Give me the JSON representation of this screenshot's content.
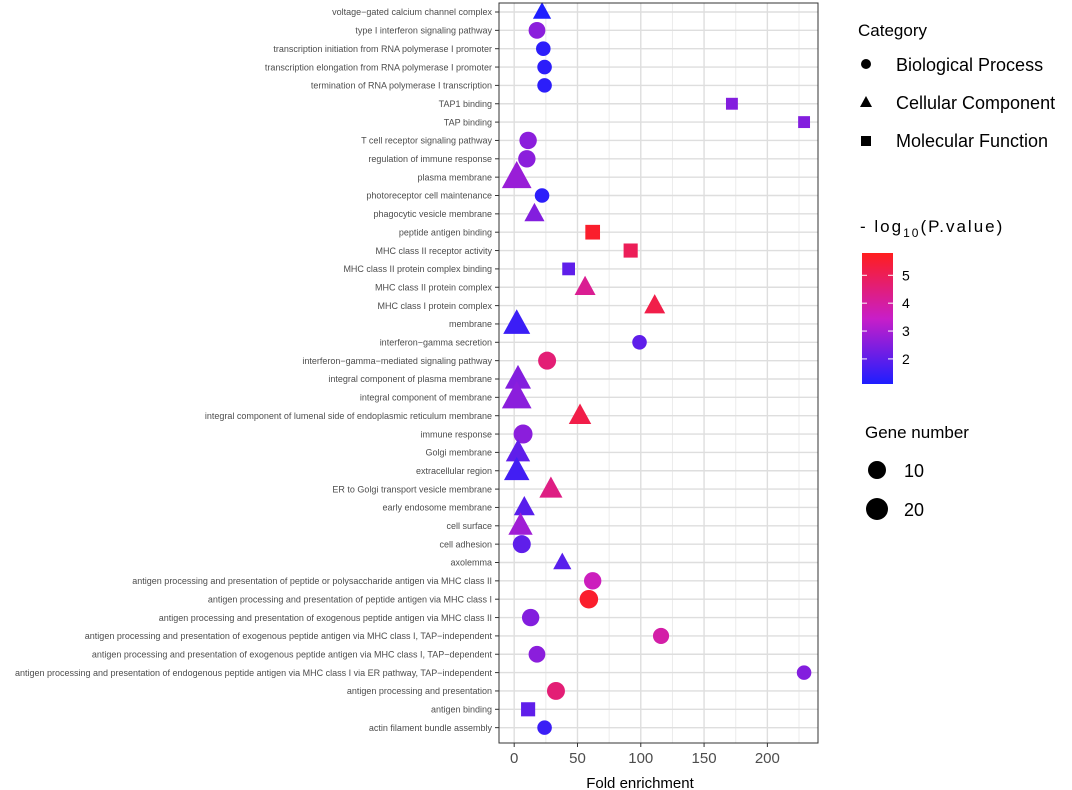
{
  "chart_data": {
    "type": "scatter",
    "xlabel": "Fold enrichment",
    "ylabel": "",
    "xlim": [
      -12,
      240
    ],
    "x_ticks": [
      "0",
      "50",
      "100",
      "150",
      "200"
    ],
    "grid": true,
    "legend_position": "right",
    "category_legend": {
      "title": "Category",
      "items": [
        {
          "label": "Biological Process",
          "shape": "circle"
        },
        {
          "label": "Cellular Component",
          "shape": "triangle"
        },
        {
          "label": "Molecular Function",
          "shape": "square"
        }
      ]
    },
    "color_legend": {
      "title_prefix": "- log",
      "title_sub": "10",
      "title_suffix": "(P.value)",
      "min": 1.1,
      "max": 5.8,
      "ticks": [
        "2",
        "3",
        "4",
        "5"
      ],
      "color_low": "#1e1eff",
      "color_mid": "#c81ec8",
      "color_high": "#ff1e1e"
    },
    "size_legend": {
      "title": "Gene number",
      "items": [
        {
          "label": "10",
          "value": 10
        },
        {
          "label": "20",
          "value": 20
        }
      ]
    },
    "terms": [
      {
        "term": "voltage−gated calcium channel complex",
        "fold": 22,
        "category": "Cellular Component",
        "neglogp": 1.1,
        "genes": 3
      },
      {
        "term": "type I interferon signaling pathway",
        "fold": 18,
        "category": "Biological Process",
        "neglogp": 2.6,
        "genes": 6
      },
      {
        "term": "transcription initiation from RNA polymerase I promoter",
        "fold": 23,
        "category": "Biological Process",
        "neglogp": 1.3,
        "genes": 3
      },
      {
        "term": "transcription elongation from RNA polymerase I promoter",
        "fold": 24,
        "category": "Biological Process",
        "neglogp": 1.3,
        "genes": 3
      },
      {
        "term": "termination of RNA polymerase I transcription",
        "fold": 24,
        "category": "Biological Process",
        "neglogp": 1.3,
        "genes": 3
      },
      {
        "term": "TAP1 binding",
        "fold": 172,
        "category": "Molecular Function",
        "neglogp": 2.5,
        "genes": 2
      },
      {
        "term": "TAP binding",
        "fold": 229,
        "category": "Molecular Function",
        "neglogp": 2.5,
        "genes": 2
      },
      {
        "term": "T cell receptor signaling pathway",
        "fold": 11,
        "category": "Biological Process",
        "neglogp": 2.6,
        "genes": 7
      },
      {
        "term": "regulation of immune response",
        "fold": 10,
        "category": "Biological Process",
        "neglogp": 2.6,
        "genes": 7
      },
      {
        "term": "plasma membrane",
        "fold": 2,
        "category": "Cellular Component",
        "neglogp": 2.8,
        "genes": 22
      },
      {
        "term": "photoreceptor cell maintenance",
        "fold": 22,
        "category": "Biological Process",
        "neglogp": 1.3,
        "genes": 3
      },
      {
        "term": "phagocytic vesicle membrane",
        "fold": 16,
        "category": "Cellular Component",
        "neglogp": 2.5,
        "genes": 5
      },
      {
        "term": "peptide antigen binding",
        "fold": 62,
        "category": "Molecular Function",
        "neglogp": 5.6,
        "genes": 6
      },
      {
        "term": "MHC class II receptor activity",
        "fold": 92,
        "category": "Molecular Function",
        "neglogp": 5.0,
        "genes": 5
      },
      {
        "term": "MHC class II protein complex binding",
        "fold": 43,
        "category": "Molecular Function",
        "neglogp": 2.0,
        "genes": 3
      },
      {
        "term": "MHC class II protein complex",
        "fold": 56,
        "category": "Cellular Component",
        "neglogp": 4.2,
        "genes": 6
      },
      {
        "term": "MHC class I protein complex",
        "fold": 111,
        "category": "Cellular Component",
        "neglogp": 5.2,
        "genes": 6
      },
      {
        "term": "membrane",
        "fold": 2,
        "category": "Cellular Component",
        "neglogp": 1.5,
        "genes": 16
      },
      {
        "term": "interferon−gamma secretion",
        "fold": 99,
        "category": "Biological Process",
        "neglogp": 2.0,
        "genes": 3
      },
      {
        "term": "interferon−gamma−mediated signaling pathway",
        "fold": 26,
        "category": "Biological Process",
        "neglogp": 4.6,
        "genes": 8
      },
      {
        "term": "integral component of plasma membrane",
        "fold": 3,
        "category": "Cellular Component",
        "neglogp": 2.5,
        "genes": 14
      },
      {
        "term": "integral component of membrane",
        "fold": 2,
        "category": "Cellular Component",
        "neglogp": 2.6,
        "genes": 22
      },
      {
        "term": "integral component of lumenal side of endoplasmic reticulum membrane",
        "fold": 52,
        "category": "Cellular Component",
        "neglogp": 5.2,
        "genes": 8
      },
      {
        "term": "immune response",
        "fold": 7,
        "category": "Biological Process",
        "neglogp": 2.6,
        "genes": 10
      },
      {
        "term": "Golgi membrane",
        "fold": 3,
        "category": "Cellular Component",
        "neglogp": 2.0,
        "genes": 11
      },
      {
        "term": "extracellular region",
        "fold": 2,
        "category": "Cellular Component",
        "neglogp": 1.6,
        "genes": 13
      },
      {
        "term": "ER to Golgi transport vesicle membrane",
        "fold": 29,
        "category": "Cellular Component",
        "neglogp": 4.4,
        "genes": 9
      },
      {
        "term": "early endosome membrane",
        "fold": 8,
        "category": "Cellular Component",
        "neglogp": 1.9,
        "genes": 6
      },
      {
        "term": "cell surface",
        "fold": 5,
        "category": "Cellular Component",
        "neglogp": 2.9,
        "genes": 11
      },
      {
        "term": "cell adhesion",
        "fold": 6,
        "category": "Biological Process",
        "neglogp": 2.0,
        "genes": 8
      },
      {
        "term": "axolemma",
        "fold": 38,
        "category": "Cellular Component",
        "neglogp": 1.9,
        "genes": 3
      },
      {
        "term": "antigen processing and presentation of peptide or polysaccharide antigen via MHC class II",
        "fold": 62,
        "category": "Biological Process",
        "neglogp": 3.6,
        "genes": 7
      },
      {
        "term": "antigen processing and presentation of peptide antigen via MHC class I",
        "fold": 59,
        "category": "Biological Process",
        "neglogp": 5.6,
        "genes": 9
      },
      {
        "term": "antigen processing and presentation of exogenous peptide antigen via MHC class II",
        "fold": 13,
        "category": "Biological Process",
        "neglogp": 2.5,
        "genes": 7
      },
      {
        "term": "antigen processing and presentation of exogenous peptide antigen via MHC class I, TAP−independent",
        "fold": 116,
        "category": "Biological Process",
        "neglogp": 3.9,
        "genes": 5
      },
      {
        "term": "antigen processing and presentation of exogenous peptide antigen via MHC class I, TAP−dependent",
        "fold": 18,
        "category": "Biological Process",
        "neglogp": 2.6,
        "genes": 6
      },
      {
        "term": "antigen processing and presentation of endogenous peptide antigen via MHC class I via ER pathway, TAP−independent",
        "fold": 229,
        "category": "Biological Process",
        "neglogp": 2.5,
        "genes": 3
      },
      {
        "term": "antigen processing and presentation",
        "fold": 33,
        "category": "Biological Process",
        "neglogp": 4.6,
        "genes": 8
      },
      {
        "term": "antigen binding",
        "fold": 11,
        "category": "Molecular Function",
        "neglogp": 2.0,
        "genes": 5
      },
      {
        "term": "actin filament bundle assembly",
        "fold": 24,
        "category": "Biological Process",
        "neglogp": 1.5,
        "genes": 3
      }
    ]
  }
}
